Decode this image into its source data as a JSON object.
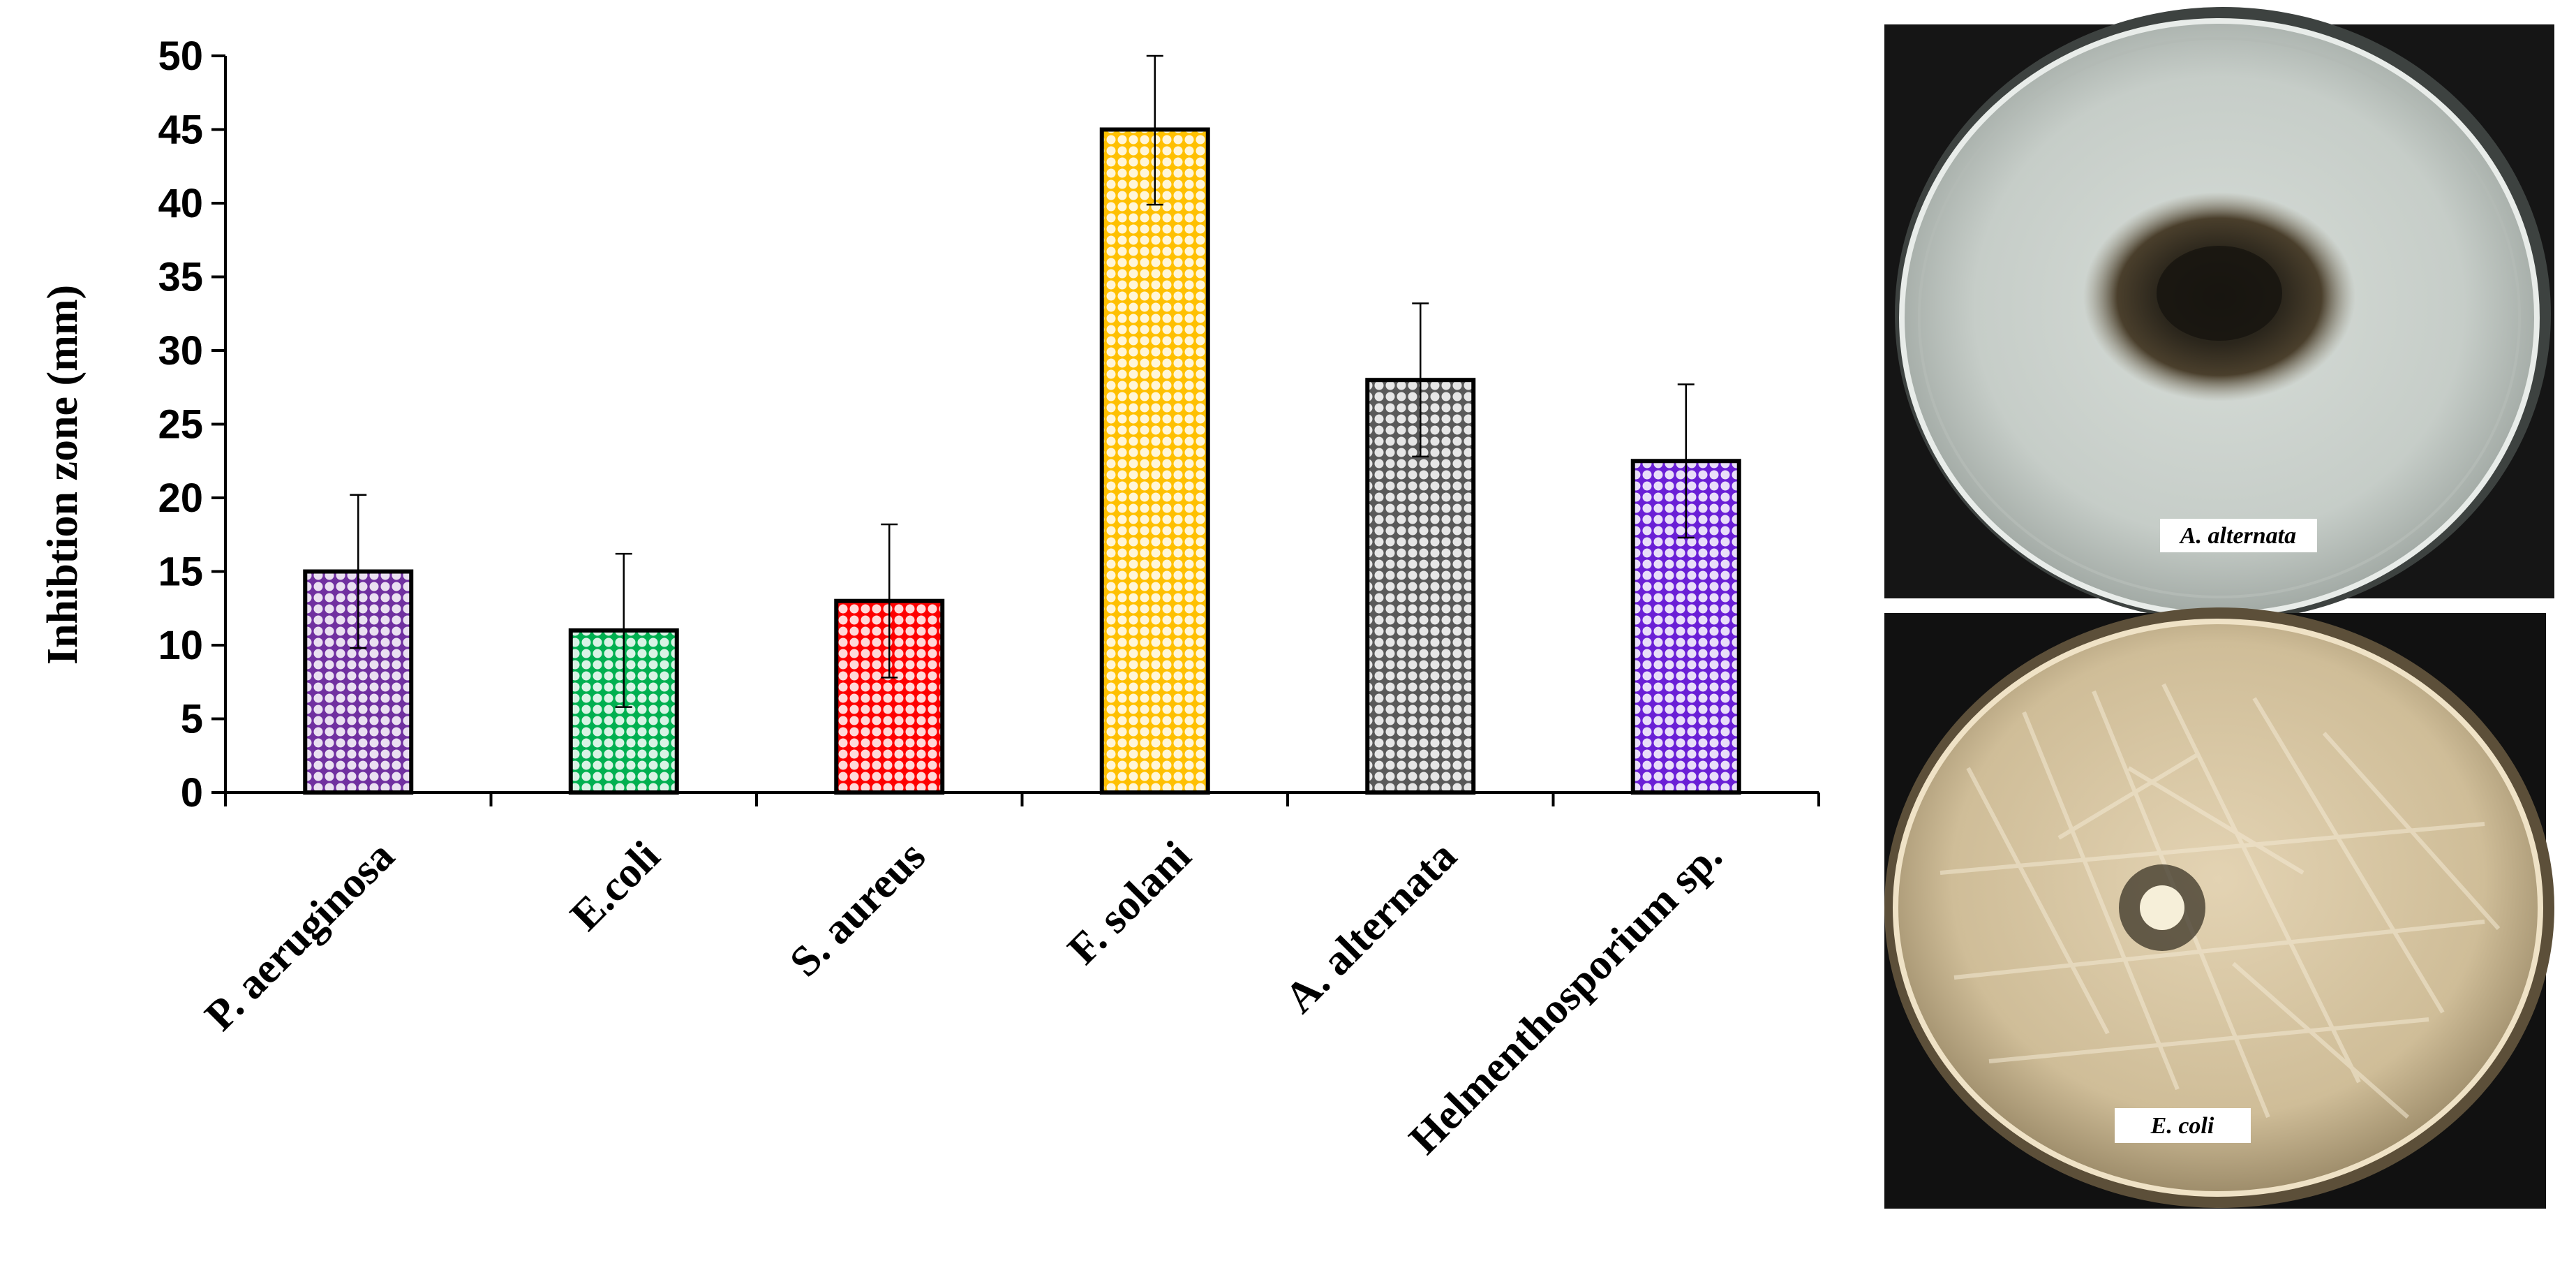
{
  "chart_data": {
    "type": "bar",
    "ylabel": "Inhibtion zone (mm)",
    "categories": [
      "P. aeruginosa",
      "E.coli",
      "S. aureus",
      "F. solani",
      "A. alternata",
      "Helmenthosporium sp."
    ],
    "values": [
      15,
      11,
      13,
      45,
      28,
      22.5
    ],
    "error": [
      5.2,
      5.2,
      5.2,
      5.1,
      5.2,
      5.2
    ],
    "colors": [
      "#7030A0",
      "#00B050",
      "#FF0000",
      "#FFC000",
      "#595959",
      "#6A1FD6"
    ],
    "pattern": "circles",
    "ylim": [
      0,
      50
    ],
    "yticks": [
      0,
      5,
      10,
      15,
      20,
      25,
      30,
      35,
      40,
      45,
      50
    ],
    "grid": false,
    "legend": "none"
  },
  "photos": [
    {
      "label": "A. alternata",
      "content": "Petri dish with dark fungal colony"
    },
    {
      "label": "E. coli",
      "content": "Petri dish with bacterial lawn and inhibition zone around disc"
    }
  ]
}
